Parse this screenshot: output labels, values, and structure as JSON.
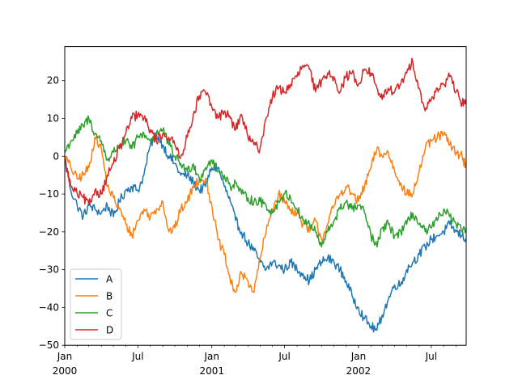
{
  "chart_data": {
    "type": "line",
    "title": "",
    "xlabel": "",
    "ylabel": "",
    "x_start": "2000-01-01",
    "x_end": "2002-09-26",
    "xlim": [
      "2000-01-01",
      "2002-09-26"
    ],
    "ylim": [
      -50,
      29
    ],
    "grid": false,
    "legend_position": "lower-left",
    "y_ticks": [
      {
        "value": 20,
        "label": "20"
      },
      {
        "value": 10,
        "label": "10"
      },
      {
        "value": 0,
        "label": "0"
      },
      {
        "value": -10,
        "label": "−10"
      },
      {
        "value": -20,
        "label": "−20"
      },
      {
        "value": -30,
        "label": "−30"
      },
      {
        "value": -40,
        "label": "−40"
      },
      {
        "value": -50,
        "label": "−50"
      }
    ],
    "x_ticks": [
      {
        "date": "2000-01-01",
        "line1": "Jan",
        "line2": "2000"
      },
      {
        "date": "2000-07-01",
        "line1": "Jul",
        "line2": ""
      },
      {
        "date": "2001-01-01",
        "line1": "Jan",
        "line2": "2001"
      },
      {
        "date": "2001-07-01",
        "line1": "Jul",
        "line2": ""
      },
      {
        "date": "2002-01-01",
        "line1": "Jan",
        "line2": "2002"
      },
      {
        "date": "2002-07-01",
        "line1": "Jul",
        "line2": ""
      }
    ],
    "minor_tick_dates": [
      "2000-02-01",
      "2000-03-01",
      "2000-04-01",
      "2000-05-01",
      "2000-06-01",
      "2000-08-01",
      "2000-09-01",
      "2000-10-01",
      "2000-11-01",
      "2000-12-01",
      "2001-02-01",
      "2001-03-01",
      "2001-04-01",
      "2001-05-01",
      "2001-06-01",
      "2001-08-01",
      "2001-09-01",
      "2001-10-01",
      "2001-11-01",
      "2001-12-01",
      "2002-02-01",
      "2002-03-01",
      "2002-04-01",
      "2002-05-01",
      "2002-06-01",
      "2002-08-01",
      "2002-09-01"
    ],
    "series": [
      {
        "name": "A",
        "color": "#1f77b4",
        "x": [
          "2000-01-01",
          "2000-01-16",
          "2000-02-01",
          "2000-02-16",
          "2000-03-01",
          "2000-03-16",
          "2000-04-01",
          "2000-04-16",
          "2000-05-01",
          "2000-05-16",
          "2000-06-01",
          "2000-06-16",
          "2000-07-01",
          "2000-07-16",
          "2000-08-01",
          "2000-08-16",
          "2000-09-01",
          "2000-09-16",
          "2000-10-01",
          "2000-10-16",
          "2000-11-01",
          "2000-11-16",
          "2000-12-01",
          "2000-12-16",
          "2001-01-01",
          "2001-01-16",
          "2001-02-01",
          "2001-02-16",
          "2001-03-01",
          "2001-03-16",
          "2001-04-01",
          "2001-04-16",
          "2001-05-01",
          "2001-05-16",
          "2001-06-01",
          "2001-06-16",
          "2001-07-01",
          "2001-07-16",
          "2001-08-01",
          "2001-08-16",
          "2001-09-01",
          "2001-09-16",
          "2001-10-01",
          "2001-10-16",
          "2001-11-01",
          "2001-11-16",
          "2001-12-01",
          "2001-12-16",
          "2002-01-01",
          "2002-01-16",
          "2002-02-01",
          "2002-02-16",
          "2002-03-01",
          "2002-03-16",
          "2002-04-01",
          "2002-04-16",
          "2002-05-01",
          "2002-05-16",
          "2002-06-01",
          "2002-06-16",
          "2002-07-01",
          "2002-07-16",
          "2002-08-01",
          "2002-08-16",
          "2002-09-01",
          "2002-09-16",
          "2002-09-26"
        ],
        "values": [
          0,
          -9,
          -13,
          -16,
          -13,
          -14,
          -15,
          -13,
          -16,
          -12,
          -9,
          -8,
          -9,
          -5,
          3,
          6,
          3,
          0,
          -2,
          -5,
          -5,
          -7,
          -9,
          -8,
          -3,
          -3,
          -8,
          -12,
          -17,
          -20,
          -23,
          -25,
          -28,
          -30,
          -28,
          -29,
          -30,
          -28,
          -30,
          -31,
          -33,
          -30,
          -28,
          -27,
          -28,
          -30,
          -33,
          -37,
          -40,
          -43,
          -45,
          -46,
          -42,
          -38,
          -34,
          -34,
          -30,
          -28,
          -26,
          -24,
          -22,
          -21,
          -20,
          -18,
          -20,
          -21,
          -22
        ]
      },
      {
        "name": "B",
        "color": "#ff7f0e",
        "x": [
          "2000-01-01",
          "2000-01-16",
          "2000-02-01",
          "2000-02-16",
          "2000-03-01",
          "2000-03-16",
          "2000-04-01",
          "2000-04-16",
          "2000-05-01",
          "2000-05-16",
          "2000-06-01",
          "2000-06-16",
          "2000-07-01",
          "2000-07-16",
          "2000-08-01",
          "2000-08-16",
          "2000-09-01",
          "2000-09-16",
          "2000-10-01",
          "2000-10-16",
          "2000-11-01",
          "2000-11-16",
          "2000-12-01",
          "2000-12-16",
          "2001-01-01",
          "2001-01-16",
          "2001-02-01",
          "2001-02-16",
          "2001-03-01",
          "2001-03-16",
          "2001-04-01",
          "2001-04-16",
          "2001-05-01",
          "2001-05-16",
          "2001-06-01",
          "2001-06-16",
          "2001-07-01",
          "2001-07-16",
          "2001-08-01",
          "2001-08-16",
          "2001-09-01",
          "2001-09-16",
          "2001-10-01",
          "2001-10-16",
          "2001-11-01",
          "2001-11-16",
          "2001-12-01",
          "2001-12-16",
          "2002-01-01",
          "2002-01-16",
          "2002-02-01",
          "2002-02-16",
          "2002-03-01",
          "2002-03-16",
          "2002-04-01",
          "2002-04-16",
          "2002-05-01",
          "2002-05-16",
          "2002-06-01",
          "2002-06-16",
          "2002-07-01",
          "2002-07-16",
          "2002-08-01",
          "2002-08-16",
          "2002-09-01",
          "2002-09-16",
          "2002-09-26"
        ],
        "values": [
          0,
          -3,
          -6,
          -5,
          -3,
          5,
          2,
          -8,
          -11,
          -14,
          -18,
          -21,
          -17,
          -14,
          -16,
          -14,
          -12,
          -20,
          -19,
          -14,
          -12,
          -8,
          -6,
          -6,
          -13,
          -22,
          -26,
          -33,
          -36,
          -31,
          -33,
          -36,
          -27,
          -20,
          -14,
          -10,
          -12,
          -14,
          -15,
          -18,
          -20,
          -17,
          -22,
          -18,
          -13,
          -10,
          -8,
          -10,
          -12,
          -8,
          -3,
          2,
          0,
          1,
          -4,
          -7,
          -10,
          -10,
          -4,
          2,
          4,
          5,
          6,
          3,
          1,
          0,
          -3
        ]
      },
      {
        "name": "C",
        "color": "#2ca02c",
        "x": [
          "2000-01-01",
          "2000-01-16",
          "2000-02-01",
          "2000-02-16",
          "2000-03-01",
          "2000-03-16",
          "2000-04-01",
          "2000-04-16",
          "2000-05-01",
          "2000-05-16",
          "2000-06-01",
          "2000-06-16",
          "2000-07-01",
          "2000-07-16",
          "2000-08-01",
          "2000-08-16",
          "2000-09-01",
          "2000-09-16",
          "2000-10-01",
          "2000-10-16",
          "2000-11-01",
          "2000-11-16",
          "2000-12-01",
          "2000-12-16",
          "2001-01-01",
          "2001-01-16",
          "2001-02-01",
          "2001-02-16",
          "2001-03-01",
          "2001-03-16",
          "2001-04-01",
          "2001-04-16",
          "2001-05-01",
          "2001-05-16",
          "2001-06-01",
          "2001-06-16",
          "2001-07-01",
          "2001-07-16",
          "2001-08-01",
          "2001-08-16",
          "2001-09-01",
          "2001-09-16",
          "2001-10-01",
          "2001-10-16",
          "2001-11-01",
          "2001-11-16",
          "2001-12-01",
          "2001-12-16",
          "2002-01-01",
          "2002-01-16",
          "2002-02-01",
          "2002-02-16",
          "2002-03-01",
          "2002-03-16",
          "2002-04-01",
          "2002-04-16",
          "2002-05-01",
          "2002-05-16",
          "2002-06-01",
          "2002-06-16",
          "2002-07-01",
          "2002-07-16",
          "2002-08-01",
          "2002-08-16",
          "2002-09-01",
          "2002-09-16",
          "2002-09-26"
        ],
        "values": [
          1,
          4,
          6,
          8,
          10,
          6,
          4,
          -1,
          1,
          3,
          4,
          2,
          5,
          6,
          4,
          6,
          7,
          3,
          0,
          -2,
          -4,
          -2,
          -6,
          -3,
          -1,
          -4,
          -5,
          -8,
          -7,
          -10,
          -11,
          -12,
          -12,
          -13,
          -15,
          -12,
          -10,
          -11,
          -14,
          -17,
          -18,
          -20,
          -24,
          -20,
          -17,
          -14,
          -12,
          -14,
          -13,
          -15,
          -21,
          -24,
          -19,
          -18,
          -21,
          -20,
          -18,
          -15,
          -18,
          -20,
          -19,
          -17,
          -14,
          -16,
          -18,
          -20,
          -19
        ]
      },
      {
        "name": "D",
        "color": "#d62728",
        "x": [
          "2000-01-01",
          "2000-01-16",
          "2000-02-01",
          "2000-02-16",
          "2000-03-01",
          "2000-03-16",
          "2000-04-01",
          "2000-04-16",
          "2000-05-01",
          "2000-05-16",
          "2000-06-01",
          "2000-06-16",
          "2000-07-01",
          "2000-07-16",
          "2000-08-01",
          "2000-08-16",
          "2000-09-01",
          "2000-09-16",
          "2000-10-01",
          "2000-10-16",
          "2000-11-01",
          "2000-11-16",
          "2000-12-01",
          "2000-12-16",
          "2001-01-01",
          "2001-01-16",
          "2001-02-01",
          "2001-02-16",
          "2001-03-01",
          "2001-03-16",
          "2001-04-01",
          "2001-04-16",
          "2001-05-01",
          "2001-05-16",
          "2001-06-01",
          "2001-06-16",
          "2001-07-01",
          "2001-07-16",
          "2001-08-01",
          "2001-08-16",
          "2001-09-01",
          "2001-09-16",
          "2001-10-01",
          "2001-10-16",
          "2001-11-01",
          "2001-11-16",
          "2001-12-01",
          "2001-12-16",
          "2002-01-01",
          "2002-01-16",
          "2002-02-01",
          "2002-02-16",
          "2002-03-01",
          "2002-03-16",
          "2002-04-01",
          "2002-04-16",
          "2002-05-01",
          "2002-05-16",
          "2002-06-01",
          "2002-06-16",
          "2002-07-01",
          "2002-07-16",
          "2002-08-01",
          "2002-08-16",
          "2002-09-01",
          "2002-09-16",
          "2002-09-26"
        ],
        "values": [
          -1,
          -8,
          -10,
          -11,
          -13,
          -9,
          -10,
          -5,
          -2,
          2,
          6,
          10,
          11,
          10,
          7,
          4,
          6,
          5,
          3,
          0,
          5,
          11,
          16,
          17,
          13,
          10,
          12,
          10,
          7,
          11,
          5,
          3,
          2,
          10,
          16,
          18,
          17,
          19,
          21,
          24,
          23,
          17,
          20,
          22,
          21,
          17,
          21,
          22,
          19,
          23,
          22,
          18,
          15,
          18,
          17,
          19,
          22,
          25,
          18,
          12,
          15,
          18,
          19,
          21,
          17,
          14,
          15
        ]
      }
    ]
  }
}
